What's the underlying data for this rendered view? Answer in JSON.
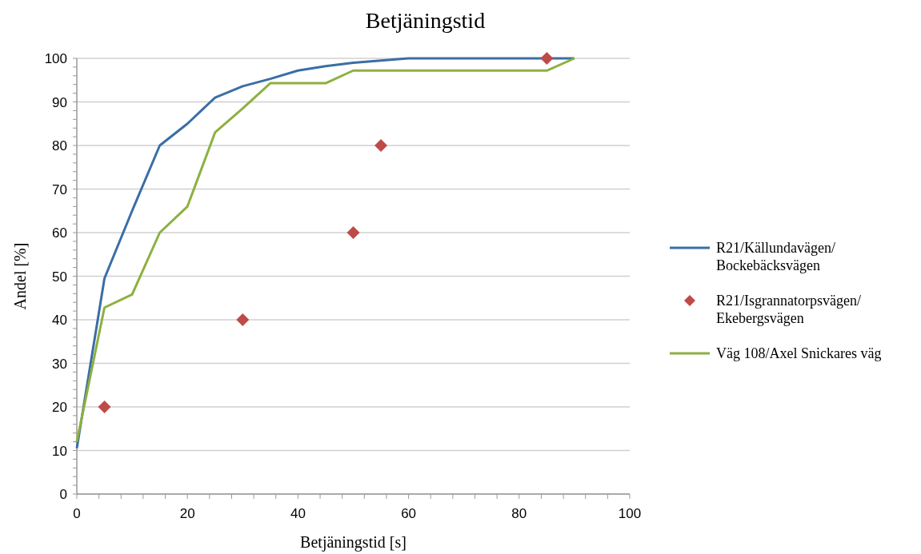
{
  "chart_data": {
    "type": "line",
    "title": "Betjäningstid",
    "xlabel": "Betjäningstid [s]",
    "ylabel": "Andel [%]",
    "xlim": [
      0,
      100
    ],
    "ylim": [
      0,
      100
    ],
    "xticks": [
      0,
      {
        "value": 4,
        "label": null
      },
      {
        "value": 8,
        "label": null
      },
      {
        "value": 12,
        "label": null
      },
      {
        "value": 16,
        "label": null
      },
      20,
      {
        "value": 24,
        "label": null
      },
      {
        "value": 28,
        "label": null
      },
      {
        "value": 32,
        "label": null
      },
      {
        "value": 36,
        "label": null
      },
      40,
      {
        "value": 44,
        "label": null
      },
      {
        "value": 48,
        "label": null
      },
      {
        "value": 52,
        "label": null
      },
      {
        "value": 56,
        "label": null
      },
      60,
      {
        "value": 64,
        "label": null
      },
      {
        "value": 68,
        "label": null
      },
      {
        "value": 72,
        "label": null
      },
      {
        "value": 76,
        "label": null
      },
      80,
      {
        "value": 84,
        "label": null
      },
      {
        "value": 88,
        "label": null
      },
      {
        "value": 92,
        "label": null
      },
      {
        "value": 96,
        "label": null
      },
      100
    ],
    "yticks": [
      0,
      {
        "value": 2,
        "label": null
      },
      {
        "value": 4,
        "label": null
      },
      {
        "value": 6,
        "label": null
      },
      {
        "value": 8,
        "label": null
      },
      10,
      {
        "value": 12,
        "label": null
      },
      {
        "value": 14,
        "label": null
      },
      {
        "value": 16,
        "label": null
      },
      {
        "value": 18,
        "label": null
      },
      20,
      {
        "value": 22,
        "label": null
      },
      {
        "value": 24,
        "label": null
      },
      {
        "value": 26,
        "label": null
      },
      {
        "value": 28,
        "label": null
      },
      30,
      {
        "value": 32,
        "label": null
      },
      {
        "value": 34,
        "label": null
      },
      {
        "value": 36,
        "label": null
      },
      {
        "value": 38,
        "label": null
      },
      40,
      {
        "value": 42,
        "label": null
      },
      {
        "value": 44,
        "label": null
      },
      {
        "value": 46,
        "label": null
      },
      {
        "value": 48,
        "label": null
      },
      50,
      {
        "value": 52,
        "label": null
      },
      {
        "value": 54,
        "label": null
      },
      {
        "value": 56,
        "label": null
      },
      {
        "value": 58,
        "label": null
      },
      60,
      {
        "value": 62,
        "label": null
      },
      {
        "value": 64,
        "label": null
      },
      {
        "value": 66,
        "label": null
      },
      {
        "value": 68,
        "label": null
      },
      70,
      {
        "value": 72,
        "label": null
      },
      {
        "value": 74,
        "label": null
      },
      {
        "value": 76,
        "label": null
      },
      {
        "value": 78,
        "label": null
      },
      80,
      {
        "value": 82,
        "label": null
      },
      {
        "value": 84,
        "label": null
      },
      {
        "value": 86,
        "label": null
      },
      {
        "value": 88,
        "label": null
      },
      90,
      {
        "value": 92,
        "label": null
      },
      {
        "value": 94,
        "label": null
      },
      {
        "value": 96,
        "label": null
      },
      {
        "value": 98,
        "label": null
      },
      100
    ],
    "grid": "y",
    "legend": "right",
    "series": [
      {
        "name": "R21/Källundavägen/ Bockebäcksvägen",
        "color": "#3a6ea5",
        "x": [
          0,
          5,
          10,
          15,
          20,
          25,
          30,
          35,
          40,
          45,
          50,
          55,
          60,
          65,
          70,
          75,
          80,
          85,
          90
        ],
        "values": [
          10.5,
          49.5,
          65,
          80,
          85,
          91,
          93.6,
          95.3,
          97.2,
          98.2,
          99,
          99.5,
          100,
          100,
          100,
          100,
          100,
          100,
          100
        ]
      },
      {
        "name": "R21/Isgrannatorpsvägen/ Ekebergsvägen",
        "type": "scatter",
        "marker": "diamond",
        "color": "#be4b48",
        "x": [
          5,
          30,
          50,
          55,
          85
        ],
        "values": [
          20,
          40,
          60,
          80,
          100
        ]
      },
      {
        "name": "Väg 108/Axel Snickares väg",
        "color": "#8db040",
        "x": [
          0,
          5,
          10,
          15,
          20,
          25,
          30,
          35,
          40,
          45,
          50,
          55,
          60,
          65,
          70,
          75,
          80,
          85,
          90
        ],
        "values": [
          12,
          42.8,
          45.8,
          60,
          66,
          83,
          88.5,
          94.3,
          94.3,
          94.3,
          97.2,
          97.2,
          97.2,
          97.2,
          97.2,
          97.2,
          97.2,
          97.2,
          100
        ]
      }
    ]
  }
}
